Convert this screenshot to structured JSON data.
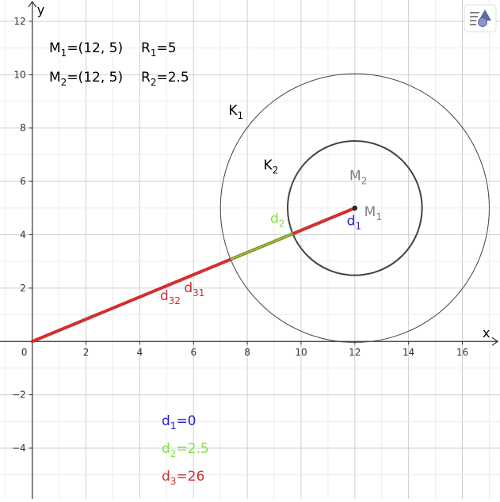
{
  "chart_data": {
    "type": "diagram",
    "axes": {
      "x_label": "x",
      "y_label": "y",
      "xlim": [
        -1.2,
        17.4
      ],
      "ylim": [
        -5.9,
        12.8
      ],
      "x_ticks": [
        2,
        4,
        6,
        8,
        10,
        12,
        14,
        16
      ],
      "y_ticks": [
        12,
        10,
        8,
        6,
        4,
        2,
        -2,
        -4
      ],
      "origin_label": "0",
      "grid": true
    },
    "points": {
      "M1": {
        "x": 12,
        "y": 5
      },
      "M2": {
        "x": 12,
        "y": 5
      },
      "O": {
        "x": 0,
        "y": 0
      }
    },
    "circles": [
      {
        "name": "K1",
        "center": [
          12,
          5
        ],
        "r": 5
      },
      {
        "name": "K2",
        "center": [
          12,
          5
        ],
        "r": 2.5
      }
    ],
    "segments": [
      {
        "name": "d1",
        "from": [
          12,
          5
        ],
        "to": [
          12,
          5
        ],
        "value": 0
      },
      {
        "name": "d2",
        "from": [
          9.7,
          4.04
        ],
        "to": [
          7.385,
          3.08
        ],
        "value": 2.5
      },
      {
        "name": "d31",
        "from": [
          0,
          0
        ],
        "to": [
          7.385,
          3.08
        ],
        "value": 26
      },
      {
        "name": "d32",
        "from": [
          9.7,
          4.04
        ],
        "to": [
          12,
          5
        ],
        "value": 26
      }
    ],
    "colors": {
      "red": "#d32f2f",
      "green": "#80e040",
      "blue": "#2222cc",
      "gray": "#808080",
      "olive": "#8a8a2a",
      "circle": "#444444",
      "grid": "#d9d9d9"
    }
  },
  "info": {
    "m1": {
      "base": "M",
      "sub": "1",
      "text": "=(12, 5)"
    },
    "r1": {
      "base": "R",
      "sub": "1",
      "text": "=5"
    },
    "m2": {
      "base": "M",
      "sub": "2",
      "text": "=(12, 5)"
    },
    "r2": {
      "base": "R",
      "sub": "2",
      "text": "=2.5"
    }
  },
  "labels": {
    "K1": {
      "base": "K",
      "sub": "1"
    },
    "K2": {
      "base": "K",
      "sub": "2"
    },
    "M1": {
      "base": "M",
      "sub": "1"
    },
    "M2": {
      "base": "M",
      "sub": "2"
    },
    "d1": {
      "base": "d",
      "sub": "1"
    },
    "d2": {
      "base": "d",
      "sub": "2"
    },
    "d31": {
      "base": "d",
      "sub": "31"
    },
    "d32": {
      "base": "d",
      "sub": "32"
    }
  },
  "values": {
    "d1": {
      "base": "d",
      "sub": "1",
      "text": "=0"
    },
    "d2": {
      "base": "d",
      "sub": "2",
      "text": "=2.5"
    },
    "d3": {
      "base": "d",
      "sub": "3",
      "text": "=26"
    }
  },
  "toolbar": {
    "icon": "graphics-style-bar-icon"
  }
}
